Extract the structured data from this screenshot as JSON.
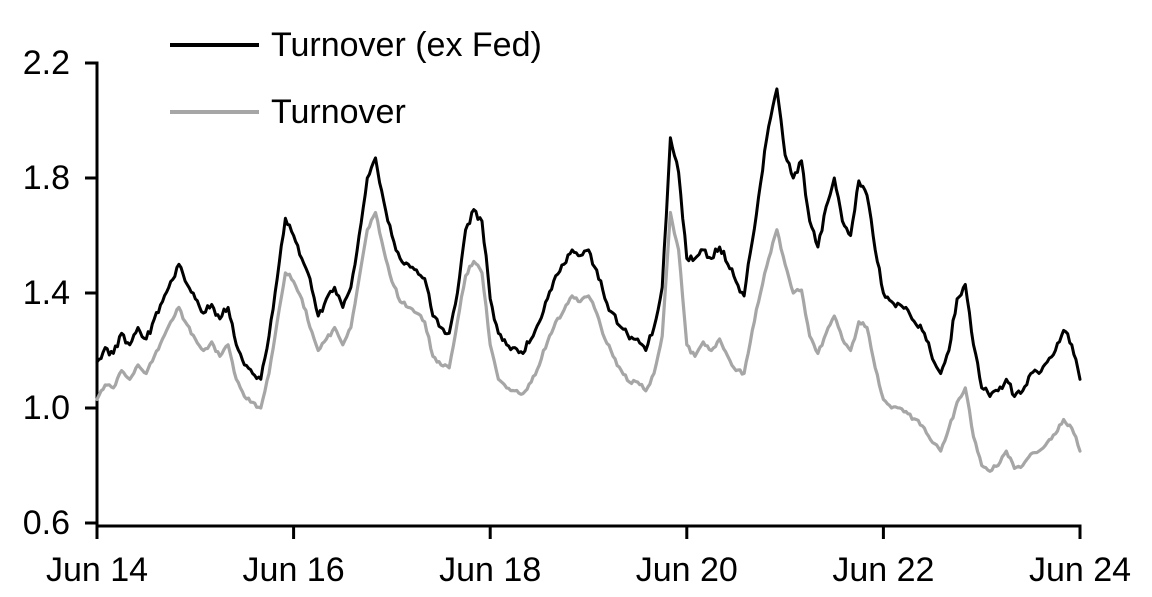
{
  "page": {
    "background": "#ffffff"
  },
  "chart_data": {
    "type": "line",
    "title": "",
    "xlabel": "",
    "ylabel": "",
    "grid": false,
    "legend_position": "inside-top-left",
    "axis_color": "#000000",
    "x_axis": {
      "unit": "months since Jun 2014 (weekly series plotted)",
      "domain": [
        0,
        120
      ],
      "ticks": [
        {
          "m": 0,
          "label": "Jun 14"
        },
        {
          "m": 24,
          "label": "Jun 16"
        },
        {
          "m": 48,
          "label": "Jun 18"
        },
        {
          "m": 72,
          "label": "Jun 20"
        },
        {
          "m": 96,
          "label": "Jun 22"
        },
        {
          "m": 120,
          "label": "Jun 24"
        }
      ]
    },
    "y_axis": {
      "domain": [
        0.6,
        2.2
      ],
      "ticks": [
        {
          "v": 2.2,
          "label": "2.2"
        },
        {
          "v": 1.8,
          "label": "1.8"
        },
        {
          "v": 1.4,
          "label": "1.4"
        },
        {
          "v": 1.0,
          "label": "1.0"
        },
        {
          "v": 0.6,
          "label": "0.6"
        }
      ]
    },
    "series": [
      {
        "name": "Turnover (ex Fed)",
        "color": "#000000",
        "stroke_width": 3,
        "noise_amplitude": 0.016,
        "frequency": "monthly anchor estimates read from the weekly plot, Jun 2014 - Jun 2024",
        "values": [
          1.16,
          1.21,
          1.19,
          1.26,
          1.22,
          1.28,
          1.24,
          1.31,
          1.37,
          1.44,
          1.5,
          1.43,
          1.38,
          1.33,
          1.36,
          1.31,
          1.35,
          1.22,
          1.15,
          1.12,
          1.1,
          1.25,
          1.45,
          1.66,
          1.6,
          1.52,
          1.45,
          1.32,
          1.38,
          1.42,
          1.35,
          1.42,
          1.6,
          1.8,
          1.87,
          1.72,
          1.6,
          1.52,
          1.5,
          1.48,
          1.45,
          1.32,
          1.28,
          1.26,
          1.4,
          1.62,
          1.69,
          1.65,
          1.38,
          1.26,
          1.22,
          1.21,
          1.19,
          1.24,
          1.3,
          1.38,
          1.46,
          1.5,
          1.55,
          1.53,
          1.55,
          1.48,
          1.38,
          1.33,
          1.28,
          1.24,
          1.24,
          1.2,
          1.28,
          1.42,
          1.94,
          1.82,
          1.52,
          1.52,
          1.55,
          1.52,
          1.56,
          1.5,
          1.44,
          1.39,
          1.58,
          1.78,
          1.98,
          2.11,
          1.88,
          1.8,
          1.86,
          1.65,
          1.56,
          1.7,
          1.8,
          1.65,
          1.6,
          1.79,
          1.74,
          1.55,
          1.4,
          1.37,
          1.36,
          1.34,
          1.29,
          1.26,
          1.17,
          1.12,
          1.2,
          1.38,
          1.43,
          1.22,
          1.07,
          1.04,
          1.06,
          1.1,
          1.04,
          1.06,
          1.12,
          1.12,
          1.16,
          1.2,
          1.27,
          1.22,
          1.1
        ]
      },
      {
        "name": "Turnover",
        "color": "#a6a6a6",
        "stroke_width": 3.2,
        "noise_amplitude": 0.01,
        "frequency": "monthly anchor estimates read from the weekly plot, Jun 2014 - Jun 2024",
        "values": [
          1.03,
          1.08,
          1.07,
          1.13,
          1.1,
          1.15,
          1.12,
          1.18,
          1.24,
          1.3,
          1.35,
          1.29,
          1.24,
          1.2,
          1.23,
          1.18,
          1.22,
          1.1,
          1.04,
          1.02,
          1.0,
          1.12,
          1.3,
          1.47,
          1.44,
          1.38,
          1.28,
          1.2,
          1.24,
          1.28,
          1.22,
          1.28,
          1.45,
          1.62,
          1.68,
          1.55,
          1.44,
          1.37,
          1.35,
          1.33,
          1.3,
          1.18,
          1.15,
          1.14,
          1.3,
          1.46,
          1.51,
          1.47,
          1.22,
          1.1,
          1.07,
          1.06,
          1.05,
          1.09,
          1.15,
          1.23,
          1.3,
          1.34,
          1.39,
          1.37,
          1.39,
          1.33,
          1.24,
          1.18,
          1.13,
          1.09,
          1.09,
          1.06,
          1.12,
          1.25,
          1.68,
          1.55,
          1.22,
          1.18,
          1.23,
          1.2,
          1.24,
          1.18,
          1.13,
          1.12,
          1.27,
          1.4,
          1.52,
          1.62,
          1.5,
          1.4,
          1.41,
          1.25,
          1.19,
          1.26,
          1.32,
          1.24,
          1.2,
          1.3,
          1.28,
          1.14,
          1.03,
          1.0,
          1.0,
          0.98,
          0.96,
          0.93,
          0.88,
          0.85,
          0.93,
          1.02,
          1.07,
          0.9,
          0.8,
          0.78,
          0.8,
          0.85,
          0.79,
          0.8,
          0.84,
          0.85,
          0.88,
          0.91,
          0.96,
          0.93,
          0.85
        ]
      }
    ],
    "render": {
      "substeps": 4,
      "seed": 20140614
    }
  }
}
